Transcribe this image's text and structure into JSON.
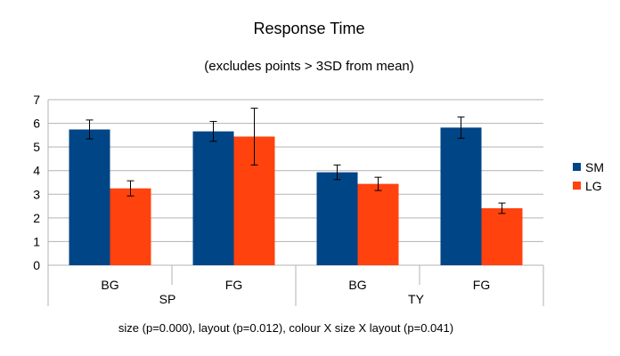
{
  "chart_data": {
    "type": "bar",
    "title": "Response Time",
    "subtitle": "(excludes points > 3SD from mean)",
    "footnote": "size (p=0.000), layout (p=0.012), colour X size X layout (p=0.041)",
    "categories": [
      "BG",
      "FG",
      "BG",
      "FG"
    ],
    "groups": [
      {
        "label": "SP",
        "categories": [
          "BG",
          "FG"
        ]
      },
      {
        "label": "TY",
        "categories": [
          "BG",
          "FG"
        ]
      }
    ],
    "series": [
      {
        "name": "SM",
        "color": "#004586",
        "values": [
          5.74,
          5.66,
          3.93,
          5.82
        ],
        "errors": [
          0.4,
          0.42,
          0.31,
          0.45
        ]
      },
      {
        "name": "LG",
        "color": "#ff420e",
        "values": [
          3.25,
          5.44,
          3.44,
          2.41
        ],
        "errors": [
          0.32,
          1.2,
          0.28,
          0.22
        ]
      }
    ],
    "ylim": [
      0,
      7
    ],
    "yticks": [
      "0",
      "1",
      "2",
      "3",
      "4",
      "5",
      "6",
      "7"
    ],
    "grid": true,
    "legend": "right"
  }
}
